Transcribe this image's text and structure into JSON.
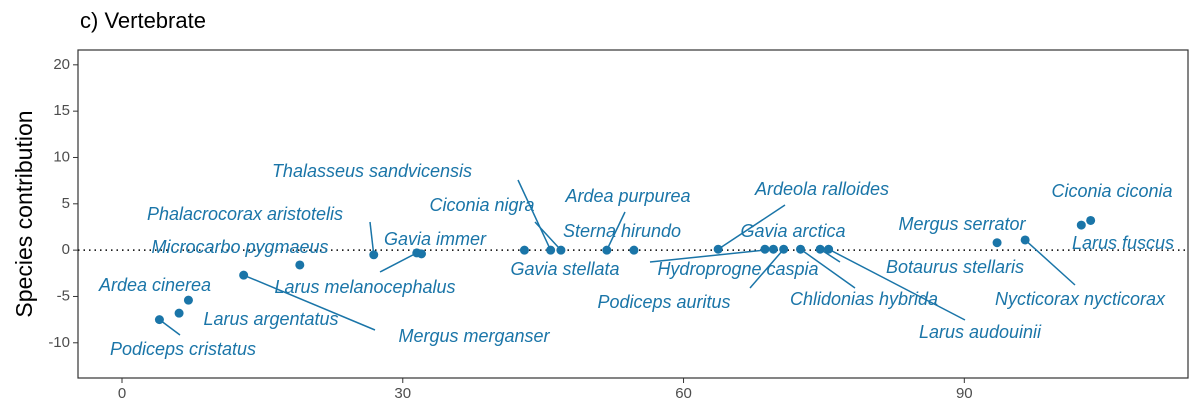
{
  "chart_data": {
    "type": "scatter",
    "title": "c) Vertebrate",
    "y_label": "Species contribution",
    "labels": [
      "Podiceps cristatus",
      "Larus argentatus",
      "Ardea cinerea",
      "Mergus merganser",
      "Microcarbo pygmaeus",
      "Phalacrocorax aristotelis",
      "Gavia immer",
      "Larus melanocephalus",
      "Thalasseus sandvicensis",
      "Ciconia nigra",
      "Gavia stellata",
      "Ardea purpurea",
      "Sterna hirundo",
      "Ardeola ralloides",
      "Gavia arctica",
      "Hydroprogne caspia",
      "Podiceps auritus",
      "Chlidonias hybrida",
      "Botaurus stellaris",
      "Larus audouinii",
      "Mergus serrator",
      "Nycticorax nycticorax",
      "Ciconia ciconia",
      "Larus fuscus"
    ],
    "x": [
      4.0,
      6.1,
      7.1,
      13.0,
      19.0,
      26.9,
      32.0,
      31.5,
      45.8,
      46.9,
      43.0,
      51.8,
      54.7,
      63.7,
      68.7,
      69.6,
      70.7,
      72.5,
      74.6,
      75.5,
      93.5,
      96.5,
      103.5,
      102.5
    ],
    "values": [
      -7.5,
      -6.8,
      -5.4,
      -2.7,
      -1.6,
      -0.5,
      -0.4,
      -0.3,
      0.0,
      0.0,
      0.0,
      0.0,
      0.0,
      0.1,
      0.1,
      0.1,
      0.1,
      0.1,
      0.1,
      0.1,
      0.8,
      1.1,
      3.2,
      2.7
    ],
    "color": "#1a75a8",
    "reference_line": 0,
    "xlim": [
      -4.7,
      113.9
    ],
    "ylim": [
      -13.8,
      21.6
    ],
    "xticks": [
      0,
      30,
      60,
      90
    ],
    "yticks": [
      -10,
      -5,
      0,
      5,
      10,
      15,
      20
    ]
  }
}
